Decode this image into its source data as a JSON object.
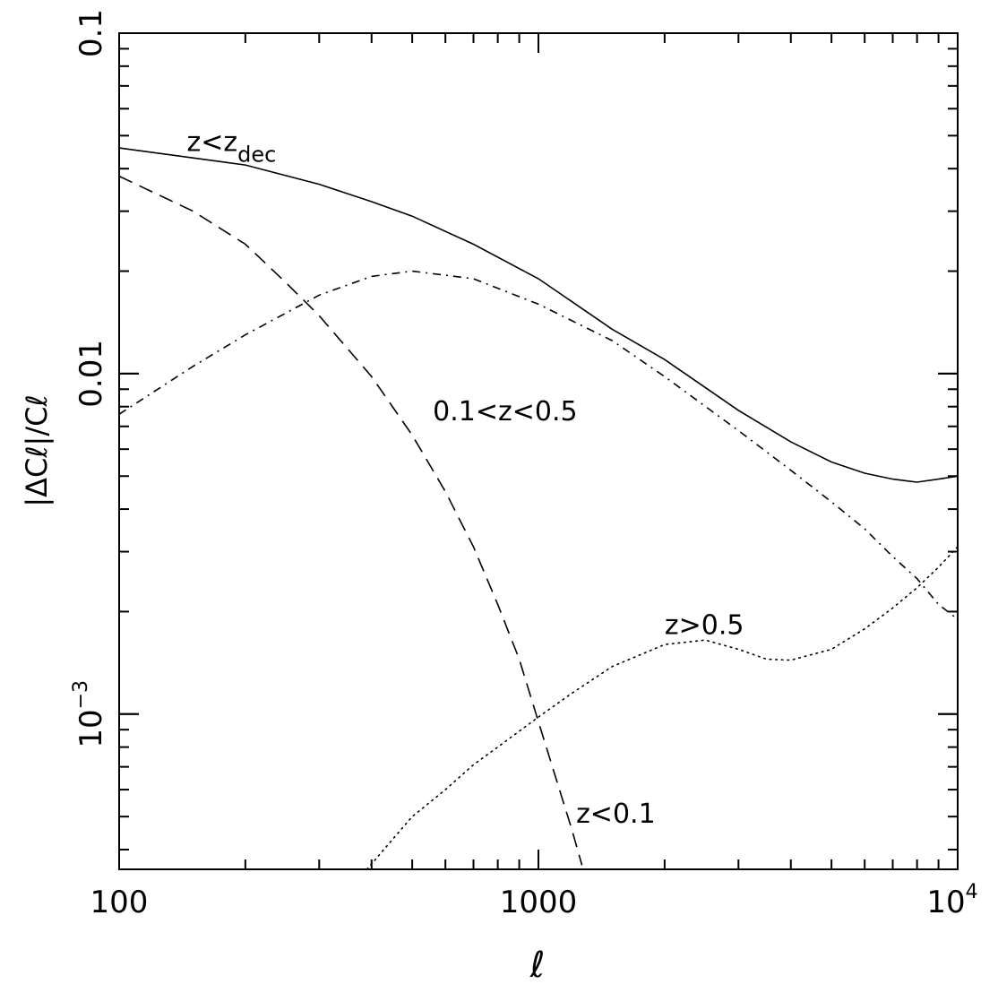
{
  "chart_data": {
    "type": "line",
    "title": "",
    "xlabel": "ℓ",
    "ylabel": "|ΔCℓ|/Cℓ",
    "xscale": "log",
    "yscale": "log",
    "xlim": [
      100,
      10000
    ],
    "ylim": [
      0.00035,
      0.1
    ],
    "grid": false,
    "legend": "none",
    "x_ticks": [
      {
        "value": 100,
        "label": "100"
      },
      {
        "value": 1000,
        "label": "1000"
      },
      {
        "value": 10000,
        "label": "10",
        "exp": "4"
      }
    ],
    "y_ticks": [
      {
        "value": 0.1,
        "label": "0.1"
      },
      {
        "value": 0.01,
        "label": "0.01"
      },
      {
        "value": 0.001,
        "label": "10",
        "exp": "−3"
      }
    ],
    "series": [
      {
        "style": "solid",
        "x": [
          100,
          150,
          200,
          300,
          400,
          500,
          700,
          1000,
          1500,
          2000,
          3000,
          4000,
          5000,
          6000,
          7000,
          8000,
          9000,
          10000
        ],
        "y": [
          0.046,
          0.043,
          0.041,
          0.036,
          0.032,
          0.029,
          0.024,
          0.019,
          0.0135,
          0.011,
          0.0078,
          0.0063,
          0.0055,
          0.0051,
          0.0049,
          0.0048,
          0.0049,
          0.005
        ]
      },
      {
        "style": "dashed",
        "x": [
          100,
          150,
          200,
          250,
          300,
          400,
          500,
          600,
          700,
          800,
          900,
          1000,
          1100,
          1200,
          1270
        ],
        "y": [
          0.038,
          0.03,
          0.024,
          0.0185,
          0.0148,
          0.0098,
          0.0066,
          0.0045,
          0.0031,
          0.0021,
          0.00145,
          0.00095,
          0.00065,
          0.00046,
          0.00036
        ]
      },
      {
        "style": "dash-dot",
        "x": [
          100,
          150,
          200,
          300,
          400,
          500,
          700,
          1000,
          1500,
          2000,
          3000,
          4000,
          5000,
          6000,
          7000,
          8000,
          9000,
          10000
        ],
        "y": [
          0.0076,
          0.0105,
          0.013,
          0.017,
          0.0193,
          0.02,
          0.019,
          0.016,
          0.0125,
          0.0098,
          0.0068,
          0.0052,
          0.0042,
          0.0035,
          0.0029,
          0.0025,
          0.0021,
          0.0019
        ]
      },
      {
        "style": "dotted",
        "x": [
          390,
          450,
          500,
          600,
          700,
          800,
          1000,
          1200,
          1500,
          2000,
          2500,
          3000,
          3500,
          4000,
          5000,
          6000,
          7000,
          8000,
          9000,
          10000
        ],
        "y": [
          0.00035,
          0.00043,
          0.0005,
          0.0006,
          0.00071,
          0.0008,
          0.00098,
          0.00115,
          0.00138,
          0.0016,
          0.00165,
          0.00155,
          0.00145,
          0.00144,
          0.00155,
          0.00178,
          0.00205,
          0.00235,
          0.0027,
          0.0031
        ]
      }
    ],
    "annotations": [
      {
        "text": "z<z",
        "sub": "dec",
        "x": 145,
        "y": 0.045
      },
      {
        "text": "0.1<z<0.5",
        "x": 560,
        "y": 0.0073
      },
      {
        "text": "z>0.5",
        "x": 2000,
        "y": 0.00172
      },
      {
        "text": "z<0.1",
        "x": 1230,
        "y": 0.00048
      }
    ]
  }
}
